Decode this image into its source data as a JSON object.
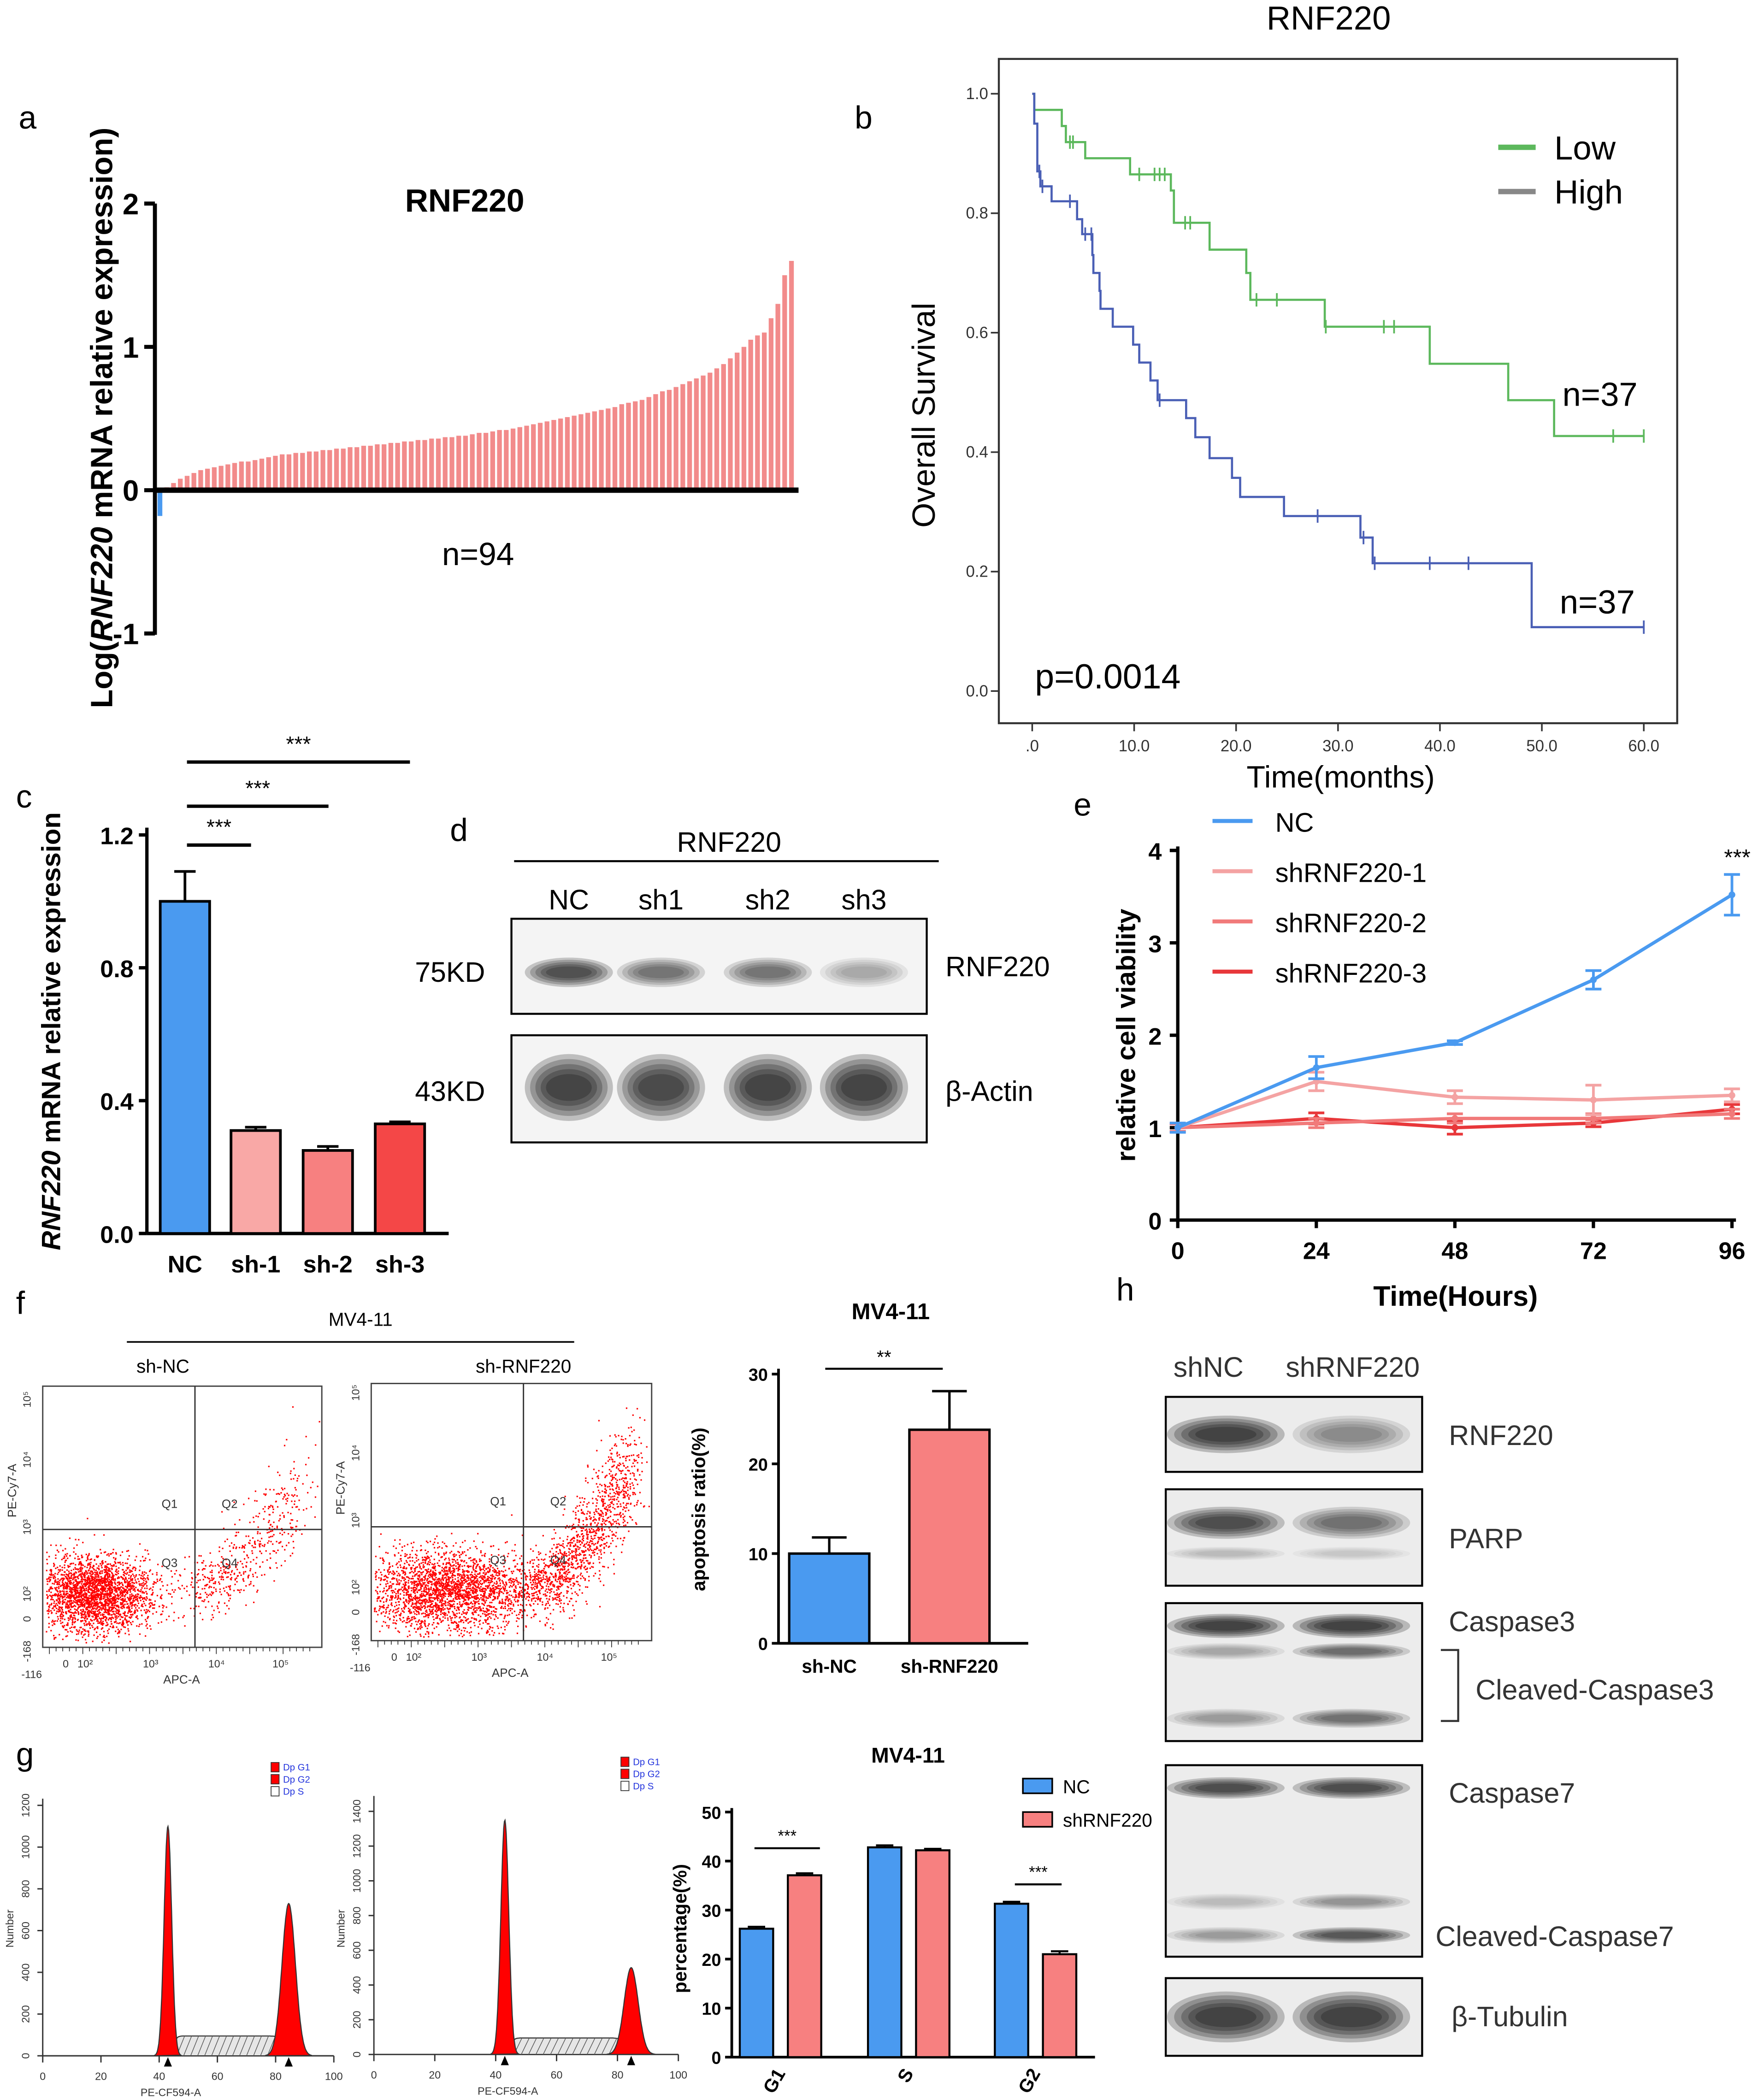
{
  "panel_labels": {
    "a": "a",
    "b": "b",
    "c": "c",
    "d": "d",
    "e": "e",
    "f": "f",
    "g": "g",
    "h": "h"
  },
  "chart_data": [
    {
      "id": "a",
      "type": "bar",
      "title": "RNF220",
      "ylabel_parts": [
        "Log(",
        "RNF220",
        " mRNA relative expression)"
      ],
      "ylim": [
        -1,
        2
      ],
      "yticks": [
        "2",
        "1",
        "0",
        "-1"
      ],
      "ytick_values": [
        2,
        1,
        0,
        -1
      ],
      "annotation": "n=94",
      "colors": {
        "positive": "#f28b8b",
        "negative": "#4a9af0"
      },
      "values": [
        -0.18,
        0.02,
        0.05,
        0.08,
        0.1,
        0.12,
        0.14,
        0.15,
        0.16,
        0.17,
        0.18,
        0.19,
        0.2,
        0.2,
        0.21,
        0.22,
        0.23,
        0.24,
        0.25,
        0.25,
        0.26,
        0.26,
        0.27,
        0.27,
        0.28,
        0.28,
        0.29,
        0.29,
        0.3,
        0.3,
        0.31,
        0.31,
        0.32,
        0.32,
        0.33,
        0.33,
        0.34,
        0.34,
        0.35,
        0.35,
        0.36,
        0.36,
        0.37,
        0.37,
        0.38,
        0.38,
        0.39,
        0.4,
        0.4,
        0.41,
        0.42,
        0.42,
        0.43,
        0.44,
        0.45,
        0.46,
        0.47,
        0.48,
        0.49,
        0.5,
        0.51,
        0.52,
        0.53,
        0.54,
        0.55,
        0.56,
        0.57,
        0.58,
        0.6,
        0.61,
        0.62,
        0.63,
        0.65,
        0.67,
        0.69,
        0.7,
        0.72,
        0.74,
        0.76,
        0.78,
        0.8,
        0.82,
        0.85,
        0.88,
        0.92,
        0.96,
        1.0,
        1.05,
        1.08,
        1.1,
        1.2,
        1.3,
        1.5,
        1.6
      ]
    },
    {
      "id": "b",
      "type": "line",
      "title": "RNF220",
      "xlabel": "Time(months)",
      "ylabel": "Overall Survival",
      "xlim": [
        0,
        60
      ],
      "ylim": [
        0,
        1
      ],
      "xticks": [
        ".0",
        "10.0",
        "20.0",
        "30.0",
        "40.0",
        "50.0",
        "60.0"
      ],
      "xtick_values": [
        0,
        10,
        20,
        30,
        40,
        50,
        60
      ],
      "yticks": [
        "0.0",
        "0.2",
        "0.4",
        "0.6",
        "0.8",
        "1.0"
      ],
      "ytick_values": [
        0,
        0.2,
        0.4,
        0.6,
        0.8,
        1.0
      ],
      "legend": [
        {
          "name": "Low",
          "color": "#5cb85c"
        },
        {
          "name": "High",
          "color": "#888888"
        }
      ],
      "series": [
        {
          "name": "Low",
          "color": "#5cb85c",
          "n_label": "n=37",
          "steps": [
            [
              0,
              1.0
            ],
            [
              0.2,
              0.973
            ],
            [
              2.9,
              0.946
            ],
            [
              3.3,
              0.919
            ],
            [
              5.2,
              0.892
            ],
            [
              9.6,
              0.865
            ],
            [
              13.6,
              0.838
            ],
            [
              13.9,
              0.784
            ],
            [
              17.4,
              0.739
            ],
            [
              21.0,
              0.7
            ],
            [
              21.4,
              0.655
            ],
            [
              28.7,
              0.61
            ],
            [
              39.0,
              0.548
            ],
            [
              46.7,
              0.487
            ],
            [
              51.2,
              0.427
            ],
            [
              60,
              0.427
            ]
          ],
          "censored": [
            3.7,
            4.0,
            10.5,
            12.0,
            12.5,
            13.0,
            15.0,
            15.5,
            22.0,
            24.0,
            28.8,
            34.5,
            35.5,
            57.0,
            60.0
          ]
        },
        {
          "name": "High",
          "color": "#4a5fb5",
          "n_label": "n=37",
          "steps": [
            [
              0,
              1.0
            ],
            [
              0.2,
              0.95
            ],
            [
              0.5,
              0.87
            ],
            [
              0.8,
              0.845
            ],
            [
              1.9,
              0.82
            ],
            [
              4.4,
              0.79
            ],
            [
              4.9,
              0.765
            ],
            [
              5.9,
              0.73
            ],
            [
              6.0,
              0.7
            ],
            [
              6.6,
              0.67
            ],
            [
              6.7,
              0.64
            ],
            [
              7.9,
              0.61
            ],
            [
              9.9,
              0.58
            ],
            [
              10.5,
              0.55
            ],
            [
              11.6,
              0.52
            ],
            [
              12.3,
              0.487
            ],
            [
              15.1,
              0.457
            ],
            [
              16.0,
              0.425
            ],
            [
              17.4,
              0.39
            ],
            [
              19.6,
              0.357
            ],
            [
              20.4,
              0.325
            ],
            [
              24.7,
              0.293
            ],
            [
              32.2,
              0.257
            ],
            [
              33.4,
              0.214
            ],
            [
              49.0,
              0.107
            ],
            [
              60,
              0.107
            ]
          ],
          "censored": [
            0.7,
            1.0,
            3.7,
            5.2,
            5.8,
            12.5,
            28.0,
            32.5,
            33.6,
            39.0,
            42.8,
            60.0
          ]
        }
      ],
      "annotation": "p=0.0014"
    },
    {
      "id": "c",
      "type": "bar",
      "ylabel_parts": [
        "RNF220",
        " mRNA relative expression"
      ],
      "ylim": [
        0,
        1.2
      ],
      "yticks": [
        "0.0",
        "0.4",
        "0.8",
        "1.2"
      ],
      "ytick_values": [
        0,
        0.4,
        0.8,
        1.2
      ],
      "categories": [
        "NC",
        "sh-1",
        "sh-2",
        "sh-3"
      ],
      "values": [
        1.0,
        0.31,
        0.25,
        0.33
      ],
      "errors": [
        0.09,
        0.01,
        0.012,
        0.006
      ],
      "colors": [
        "#4a9af0",
        "#f9a8a6",
        "#f78080",
        "#f44747"
      ],
      "significance": [
        {
          "from": 0,
          "to": 1,
          "label": "***"
        },
        {
          "from": 0,
          "to": 2,
          "label": "***"
        },
        {
          "from": 0,
          "to": 3,
          "label": "***"
        }
      ]
    },
    {
      "id": "e",
      "type": "line",
      "xlabel": "Time(Hours)",
      "ylabel": "relative cell viability",
      "xlim": [
        0,
        96
      ],
      "ylim": [
        0,
        4
      ],
      "x": [
        0,
        24,
        48,
        72,
        96
      ],
      "xticks": [
        "0",
        "24",
        "48",
        "72",
        "96"
      ],
      "yticks": [
        "0",
        "1",
        "2",
        "3",
        "4"
      ],
      "ytick_values": [
        0,
        1,
        2,
        3,
        4
      ],
      "series": [
        {
          "name": "NC",
          "color": "#4a9af0",
          "values": [
            1.0,
            1.65,
            1.92,
            2.6,
            3.52
          ],
          "errors": [
            0.05,
            0.12,
            0.02,
            0.1,
            0.22
          ]
        },
        {
          "name": "shRNF220-1",
          "color": "#f4a3a3",
          "values": [
            1.0,
            1.5,
            1.33,
            1.3,
            1.35
          ],
          "errors": [
            0.05,
            0.1,
            0.07,
            0.16,
            0.07
          ]
        },
        {
          "name": "shRNF220-2",
          "color": "#f17a7a",
          "values": [
            1.0,
            1.05,
            1.1,
            1.1,
            1.15
          ],
          "errors": [
            0.04,
            0.05,
            0.05,
            0.05,
            0.05
          ]
        },
        {
          "name": "shRNF220-3",
          "color": "#e8373a",
          "values": [
            1.0,
            1.1,
            1.0,
            1.05,
            1.2
          ],
          "errors": [
            0.04,
            0.06,
            0.07,
            0.04,
            0.05
          ]
        }
      ],
      "annotation": "***"
    },
    {
      "id": "f_bar",
      "type": "bar",
      "title": "MV4-11",
      "ylabel": "apoptosis ratio(%)",
      "ylim": [
        0,
        30
      ],
      "yticks": [
        "0",
        "10",
        "20",
        "30"
      ],
      "ytick_values": [
        0,
        10,
        20,
        30
      ],
      "categories": [
        "sh-NC",
        "sh-RNF220"
      ],
      "values": [
        10.0,
        23.8
      ],
      "errors": [
        1.8,
        4.3
      ],
      "colors": [
        "#4a9af0",
        "#f78080"
      ],
      "significance": "**"
    },
    {
      "id": "g_bar",
      "type": "bar",
      "title": "MV4-11",
      "ylabel": "percentage(%)",
      "ylim": [
        0,
        50
      ],
      "yticks": [
        "0",
        "10",
        "20",
        "30",
        "40",
        "50"
      ],
      "ytick_values": [
        0,
        10,
        20,
        30,
        40,
        50
      ],
      "categories": [
        "G1",
        "S",
        "G2"
      ],
      "series": [
        {
          "name": "NC",
          "color": "#4a9af0",
          "values": [
            26.2,
            42.8,
            31.3
          ],
          "errors": [
            0.4,
            0.4,
            0.4
          ]
        },
        {
          "name": "shRNF220",
          "color": "#f78080",
          "values": [
            37.1,
            42.2,
            21.0
          ],
          "errors": [
            0.4,
            0.3,
            0.6
          ]
        }
      ],
      "significance": [
        {
          "category": "G1",
          "label": "***"
        },
        {
          "category": "G2",
          "label": "***"
        }
      ]
    }
  ],
  "blot_d": {
    "title": "RNF220",
    "lanes": [
      "NC",
      "sh1",
      "sh2",
      "sh3"
    ],
    "rows": [
      {
        "marker": "75KD",
        "protein": "RNF220",
        "band_intensity": [
          0.9,
          0.6,
          0.6,
          0.3
        ]
      },
      {
        "marker": "43KD",
        "protein": "β-Actin",
        "band_intensity": [
          1.0,
          0.95,
          1.0,
          1.0
        ]
      }
    ]
  },
  "blot_h": {
    "lanes": [
      "shNC",
      "shRNF220"
    ],
    "labels": {
      "rnf220": "RNF220",
      "parp": "PARP",
      "casp3": "Caspase3",
      "cleaved_casp3": "Cleaved-Caspase3",
      "casp7": "Caspase7",
      "cleaved_casp7": "Cleaved-Caspase7",
      "tubulin": "β-Tubulin"
    }
  },
  "flow_f": {
    "title": "MV4-11",
    "groups": [
      "sh-NC",
      "sh-RNF220"
    ],
    "quadrants": [
      "Q1",
      "Q2",
      "Q3",
      "Q4"
    ],
    "xlabel": "APC-A",
    "ylabel": "PE-Cy7-A",
    "xticks": [
      "-116",
      "0",
      "10²",
      "10³",
      "10⁴",
      "10⁵"
    ],
    "yticks": [
      "-168",
      "0",
      "10²",
      "10³",
      "10⁴",
      "10⁵"
    ]
  },
  "hist_g": {
    "xlabel": "PE-CF594-A",
    "ylabel": "Number",
    "xticks": [
      "0",
      "20",
      "40",
      "60",
      "80",
      "100"
    ],
    "legend": [
      "Dp G1",
      "Dp G2",
      "Dp S"
    ],
    "plots": [
      {
        "yticks": [
          "0",
          "200",
          "400",
          "600",
          "800",
          "1000",
          "1200"
        ],
        "ymax": 1200,
        "g1_peak": 1100,
        "g2_peak": 730
      },
      {
        "yticks": [
          "0",
          "200",
          "400",
          "600",
          "800",
          "1000",
          "1200",
          "1400"
        ],
        "ymax": 1450,
        "g1_peak": 1350,
        "g2_peak": 500
      }
    ]
  }
}
